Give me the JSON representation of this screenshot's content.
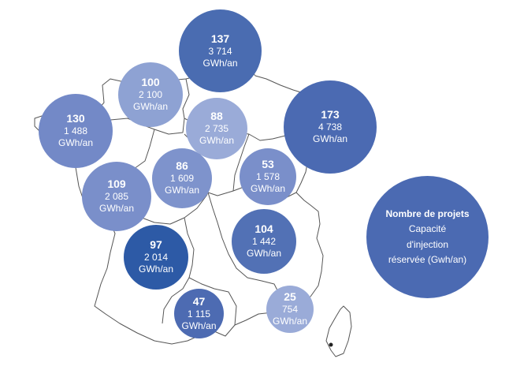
{
  "map": {
    "region_bubbles": [
      {
        "count": "137",
        "capacity": "3 714",
        "unit": "GWh/an",
        "color": "#4a6cb1"
      },
      {
        "count": "100",
        "capacity": "2 100",
        "unit": "GWh/an",
        "color": "#8ea2d3"
      },
      {
        "count": "130",
        "capacity": "1 488",
        "unit": "GWh/an",
        "color": "#7389c7"
      },
      {
        "count": "88",
        "capacity": "2 735",
        "unit": "GWh/an",
        "color": "#9aabd8"
      },
      {
        "count": "173",
        "capacity": "4 738",
        "unit": "GWh/an",
        "color": "#4b6ab2"
      },
      {
        "count": "86",
        "capacity": "1 609",
        "unit": "GWh/an",
        "color": "#7e93cc"
      },
      {
        "count": "53",
        "capacity": "1 578",
        "unit": "GWh/an",
        "color": "#7a8fca"
      },
      {
        "count": "109",
        "capacity": "2 085",
        "unit": "GWh/an",
        "color": "#7a8fca"
      },
      {
        "count": "104",
        "capacity": "1 442",
        "unit": "GWh/an",
        "color": "#5271b5"
      },
      {
        "count": "97",
        "capacity": "2 014",
        "unit": "GWh/an",
        "color": "#2d5aa6"
      },
      {
        "count": "47",
        "capacity": "1 115",
        "unit": "GWh/an",
        "color": "#4d6bb2"
      },
      {
        "count": "25",
        "capacity": "754",
        "unit": "GWh/an",
        "color": "#9aabd8"
      }
    ],
    "legend": {
      "title": "Nombre de projets",
      "line_1": "Capacité",
      "line_2": "d'injection",
      "line_3": "réservée (Gwh/an)",
      "color": "#4b6ab2"
    },
    "outline_color": "#555555"
  }
}
